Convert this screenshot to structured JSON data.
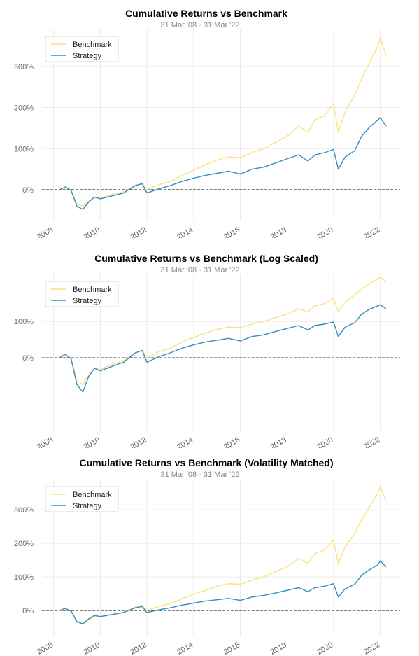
{
  "chart_data": [
    {
      "type": "line",
      "title": "Cumulative Returns vs Benchmark",
      "subtitle": "31 Mar '08 - 31 Mar '22",
      "ylim": [
        -75,
        390
      ],
      "yscale": "linear",
      "yticks": [
        0,
        100,
        200,
        300
      ],
      "ytick_labels": [
        "0%",
        "100%",
        "200%",
        "300%"
      ],
      "xticks": [
        2008,
        2010,
        2012,
        2014,
        2016,
        2018,
        2020,
        2022
      ],
      "xtick_labels": [
        "2008",
        "2010",
        "2012",
        "2014",
        "2016",
        "2018",
        "2020",
        "2022"
      ],
      "xlim": [
        2007.5,
        2022.85
      ],
      "grid": true,
      "legend": "top-left",
      "baseline": 0,
      "x": [
        2008.25,
        2008.5,
        2008.75,
        2009.0,
        2009.25,
        2009.5,
        2009.75,
        2010.0,
        2010.5,
        2011.0,
        2011.5,
        2011.8,
        2012.0,
        2012.5,
        2013.0,
        2013.5,
        2014.0,
        2014.5,
        2015.0,
        2015.5,
        2016.0,
        2016.5,
        2017.0,
        2017.5,
        2018.0,
        2018.5,
        2018.9,
        2019.2,
        2019.6,
        2020.0,
        2020.2,
        2020.5,
        2020.9,
        2021.2,
        2021.5,
        2021.9,
        2022.0,
        2022.25
      ],
      "series": [
        {
          "name": "Benchmark",
          "color": "#fbe37c",
          "values": [
            0,
            7,
            -2,
            -35,
            -40,
            -28,
            -18,
            -20,
            -12,
            -5,
            10,
            15,
            0,
            12,
            20,
            35,
            48,
            60,
            72,
            80,
            78,
            90,
            100,
            115,
            130,
            155,
            140,
            170,
            180,
            210,
            140,
            190,
            230,
            270,
            305,
            350,
            370,
            325
          ]
        },
        {
          "name": "Strategy",
          "color": "#348dc1",
          "values": [
            0,
            7,
            -2,
            -40,
            -48,
            -30,
            -18,
            -22,
            -15,
            -8,
            10,
            15,
            -8,
            2,
            10,
            20,
            28,
            35,
            40,
            45,
            38,
            50,
            55,
            65,
            75,
            85,
            70,
            85,
            90,
            98,
            50,
            80,
            95,
            130,
            150,
            170,
            175,
            155
          ]
        }
      ]
    },
    {
      "type": "line",
      "title": "Cumulative Returns vs Benchmark (Log Scaled)",
      "subtitle": "31 Mar '08 - 31 Mar '22",
      "ylim": [
        -75,
        390
      ],
      "yscale": "log",
      "yticks": [
        0,
        100
      ],
      "ytick_labels": [
        "0%",
        "100%"
      ],
      "xticks": [
        2008,
        2010,
        2012,
        2014,
        2016,
        2018,
        2020,
        2022
      ],
      "xtick_labels": [
        "2008",
        "2010",
        "2012",
        "2014",
        "2016",
        "2018",
        "2020",
        "2022"
      ],
      "xlim": [
        2007.5,
        2022.85
      ],
      "grid": true,
      "legend": "top-left",
      "baseline": 0,
      "x": [
        2008.25,
        2008.5,
        2008.75,
        2009.0,
        2009.25,
        2009.5,
        2009.75,
        2010.0,
        2010.5,
        2011.0,
        2011.5,
        2011.8,
        2012.0,
        2012.5,
        2013.0,
        2013.5,
        2014.0,
        2014.5,
        2015.0,
        2015.5,
        2016.0,
        2016.5,
        2017.0,
        2017.5,
        2018.0,
        2018.5,
        2018.9,
        2019.2,
        2019.6,
        2020.0,
        2020.2,
        2020.5,
        2020.9,
        2021.2,
        2021.5,
        2021.9,
        2022.0,
        2022.25
      ],
      "series": [
        {
          "name": "Benchmark",
          "color": "#fbe37c",
          "values": [
            0,
            7,
            -2,
            -35,
            -40,
            -28,
            -18,
            -20,
            -12,
            -5,
            10,
            15,
            0,
            12,
            20,
            35,
            48,
            60,
            72,
            80,
            78,
            90,
            100,
            115,
            130,
            155,
            140,
            170,
            180,
            210,
            140,
            190,
            230,
            270,
            305,
            350,
            370,
            325
          ]
        },
        {
          "name": "Strategy",
          "color": "#348dc1",
          "values": [
            0,
            7,
            -2,
            -40,
            -48,
            -30,
            -18,
            -22,
            -15,
            -8,
            10,
            15,
            -8,
            2,
            10,
            20,
            28,
            35,
            40,
            45,
            38,
            50,
            55,
            65,
            75,
            85,
            70,
            85,
            90,
            98,
            50,
            80,
            95,
            130,
            150,
            170,
            175,
            155
          ]
        }
      ]
    },
    {
      "type": "line",
      "title": "Cumulative Returns vs Benchmark (Volatility Matched)",
      "subtitle": "31 Mar '08 - 31 Mar '22",
      "ylim": [
        -75,
        390
      ],
      "yscale": "linear",
      "yticks": [
        0,
        100,
        200,
        300
      ],
      "ytick_labels": [
        "0%",
        "100%",
        "200%",
        "300%"
      ],
      "xticks": [
        2008,
        2010,
        2012,
        2014,
        2016,
        2018,
        2020,
        2022
      ],
      "xtick_labels": [
        "2008",
        "2010",
        "2012",
        "2014",
        "2016",
        "2018",
        "2020",
        "2022"
      ],
      "xlim": [
        2007.5,
        2022.85
      ],
      "grid": true,
      "legend": "top-left",
      "baseline": 0,
      "x": [
        2008.25,
        2008.5,
        2008.75,
        2009.0,
        2009.25,
        2009.5,
        2009.75,
        2010.0,
        2010.5,
        2011.0,
        2011.5,
        2011.8,
        2012.0,
        2012.5,
        2013.0,
        2013.5,
        2014.0,
        2014.5,
        2015.0,
        2015.5,
        2016.0,
        2016.5,
        2017.0,
        2017.5,
        2018.0,
        2018.5,
        2018.9,
        2019.2,
        2019.6,
        2020.0,
        2020.2,
        2020.5,
        2020.9,
        2021.2,
        2021.5,
        2021.9,
        2022.0,
        2022.25
      ],
      "series": [
        {
          "name": "Benchmark",
          "color": "#fbe37c",
          "values": [
            0,
            7,
            -2,
            -35,
            -40,
            -28,
            -18,
            -20,
            -12,
            -5,
            10,
            15,
            0,
            12,
            20,
            35,
            48,
            60,
            72,
            80,
            78,
            90,
            100,
            115,
            130,
            155,
            140,
            170,
            180,
            210,
            140,
            190,
            230,
            270,
            305,
            350,
            370,
            325
          ]
        },
        {
          "name": "Strategy",
          "color": "#348dc1",
          "values": [
            0,
            6,
            -2,
            -33,
            -40,
            -25,
            -15,
            -18,
            -12,
            -6,
            8,
            12,
            -6,
            2,
            8,
            16,
            22,
            28,
            32,
            36,
            30,
            40,
            45,
            52,
            60,
            68,
            56,
            68,
            72,
            80,
            40,
            65,
            78,
            105,
            120,
            136,
            148,
            130
          ]
        }
      ]
    }
  ]
}
